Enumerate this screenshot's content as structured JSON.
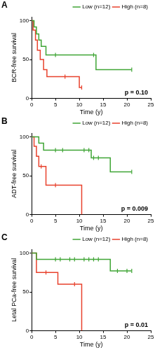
{
  "chart_data": [
    {
      "type": "line",
      "label": "A",
      "y_label": "BCR-free survival",
      "x_label": "Time (y)",
      "annotation": "p = 0.10",
      "legend": "upper right",
      "grid": false,
      "xlim": [
        0,
        25
      ],
      "xticks": [
        0,
        5,
        10,
        15,
        20,
        25
      ],
      "ylim": [
        0,
        105
      ],
      "yticks": [
        0,
        50,
        100
      ],
      "series": [
        {
          "name": "Low (n=12)",
          "color": "#3fa535",
          "x": [
            0,
            0.5,
            1,
            1.5,
            2,
            3,
            13.5,
            21
          ],
          "values": [
            100,
            92,
            83,
            75,
            67,
            56,
            37,
            37
          ],
          "censored_x": [
            5,
            13,
            21
          ],
          "censored_values": [
            56,
            56,
            37
          ]
        },
        {
          "name": "High (n=8)",
          "color": "#e8412c",
          "x": [
            0,
            0.3,
            0.8,
            1.2,
            1.8,
            2.5,
            3.2,
            10,
            10.5
          ],
          "values": [
            100,
            88,
            75,
            62,
            50,
            37,
            28,
            14,
            14
          ],
          "censored_x": [
            7,
            10.5
          ],
          "censored_values": [
            28,
            14
          ]
        }
      ]
    },
    {
      "type": "line",
      "label": "B",
      "y_label": "ADT-free survival",
      "x_label": "Time (y)",
      "annotation": "p = 0.009",
      "legend": "upper right",
      "grid": false,
      "xlim": [
        0,
        25
      ],
      "xticks": [
        0,
        5,
        10,
        15,
        20,
        25
      ],
      "ylim": [
        0,
        105
      ],
      "yticks": [
        0,
        50,
        100
      ],
      "series": [
        {
          "name": "Low (n=12)",
          "color": "#3fa535",
          "x": [
            0,
            1.5,
            2.5,
            12.5,
            16.5,
            21
          ],
          "values": [
            100,
            92,
            83,
            73,
            55,
            55
          ],
          "censored_x": [
            5,
            6.5,
            11,
            12,
            13,
            14,
            21
          ],
          "censored_values": [
            83,
            83,
            83,
            83,
            73,
            73,
            55
          ]
        },
        {
          "name": "High (n=8)",
          "color": "#e8412c",
          "x": [
            0,
            0.5,
            1,
            1.5,
            3,
            10.5
          ],
          "values": [
            100,
            88,
            75,
            62,
            38,
            0
          ],
          "censored_x": [
            2,
            5
          ],
          "censored_values": [
            62,
            38
          ]
        }
      ]
    },
    {
      "type": "line",
      "label": "C",
      "y_label": "Letal PCa-free survival",
      "x_label": "Time (y)",
      "annotation": "p = 0.01",
      "legend": "upper right",
      "grid": false,
      "xlim": [
        0,
        25
      ],
      "xticks": [
        0,
        5,
        10,
        15,
        20,
        25
      ],
      "ylim": [
        0,
        105
      ],
      "yticks": [
        0,
        50,
        100
      ],
      "series": [
        {
          "name": "Low (n=12)",
          "color": "#3fa535",
          "x": [
            0,
            1,
            16.5,
            21
          ],
          "values": [
            100,
            92,
            77,
            77
          ],
          "censored_x": [
            5,
            6,
            8,
            9,
            11,
            12,
            13,
            14,
            18,
            20,
            21
          ],
          "censored_values": [
            92,
            92,
            92,
            92,
            92,
            92,
            92,
            92,
            77,
            77,
            77
          ]
        },
        {
          "name": "High (n=8)",
          "color": "#e8412c",
          "x": [
            0,
            1,
            5.5,
            10.5
          ],
          "values": [
            100,
            75,
            60,
            0
          ],
          "censored_x": [
            3,
            9
          ],
          "censored_values": [
            75,
            60
          ]
        }
      ]
    }
  ]
}
